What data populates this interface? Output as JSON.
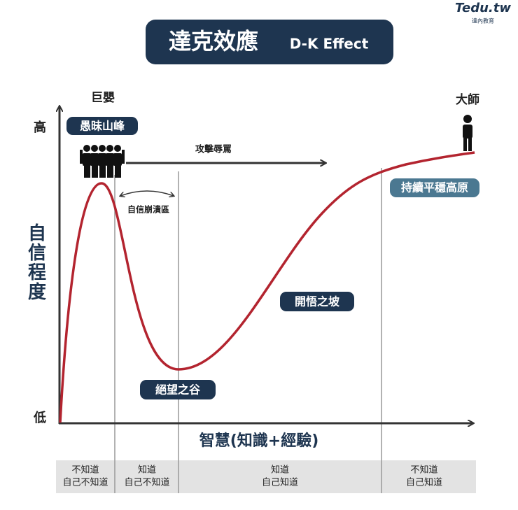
{
  "logo": {
    "name": "Tedu.tw",
    "subtitle": "達內教育"
  },
  "header": {
    "title": "達克效應",
    "subtitle": "D-K Effect"
  },
  "axes": {
    "y_label": "自信程度",
    "y_high": "高",
    "y_low": "低",
    "x_label": "智慧(知識+經驗)"
  },
  "annotations": {
    "baby": "巨嬰",
    "peak": "愚昧山峰",
    "attack": "攻擊辱罵",
    "collapse": "自信崩潰區",
    "valley": "絕望之谷",
    "slope": "開悟之坡",
    "plateau": "持續平穩高原",
    "master": "大師"
  },
  "stages": [
    {
      "lines": [
        "不知道",
        "自己不知道"
      ]
    },
    {
      "lines": [
        "知道",
        "自己不知道"
      ]
    },
    {
      "lines": [
        "知道",
        "自己知道"
      ]
    },
    {
      "lines": [
        "不知道",
        "自己知道"
      ]
    }
  ]
}
